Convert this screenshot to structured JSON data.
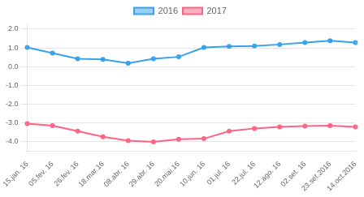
{
  "chart_data": {
    "type": "line",
    "categories": [
      "15.jan. 16",
      "05.fev. 16",
      "26.fev. 16",
      "18.mar.16",
      "08.abr. 16",
      "29.abr. 16",
      "20.mai.16",
      "10.jun. 16",
      "01.jul. 16",
      "22.jul. 16",
      "12.ago. 16",
      "02.set. 16",
      "23.set.2016",
      "14.oct.2016"
    ],
    "series": [
      {
        "name": "2016",
        "values": [
          1.02,
          0.72,
          0.42,
          0.38,
          0.18,
          0.42,
          0.52,
          1.02,
          1.08,
          1.1,
          1.18,
          1.28,
          1.38,
          1.28
        ]
      },
      {
        "name": "2017",
        "values": [
          -3.05,
          -3.15,
          -3.45,
          -3.75,
          -3.95,
          -4.02,
          -3.88,
          -3.85,
          -3.45,
          -3.3,
          -3.22,
          -3.18,
          -3.15,
          -3.22
        ]
      }
    ],
    "ylim": [
      -4.5,
      2.3
    ],
    "yticks": [
      {
        "value": -4.0,
        "label": "-4.0"
      },
      {
        "value": -3.0,
        "label": "-3.0"
      },
      {
        "value": -2.0,
        "label": "-2.0"
      },
      {
        "value": -1.0,
        "label": "-1.0"
      },
      {
        "value": 0.0,
        "label": "0.0"
      },
      {
        "value": 1.0,
        "label": "1.0"
      },
      {
        "value": 2.0,
        "label": "2.0"
      }
    ],
    "grid": true,
    "legend": "top"
  }
}
